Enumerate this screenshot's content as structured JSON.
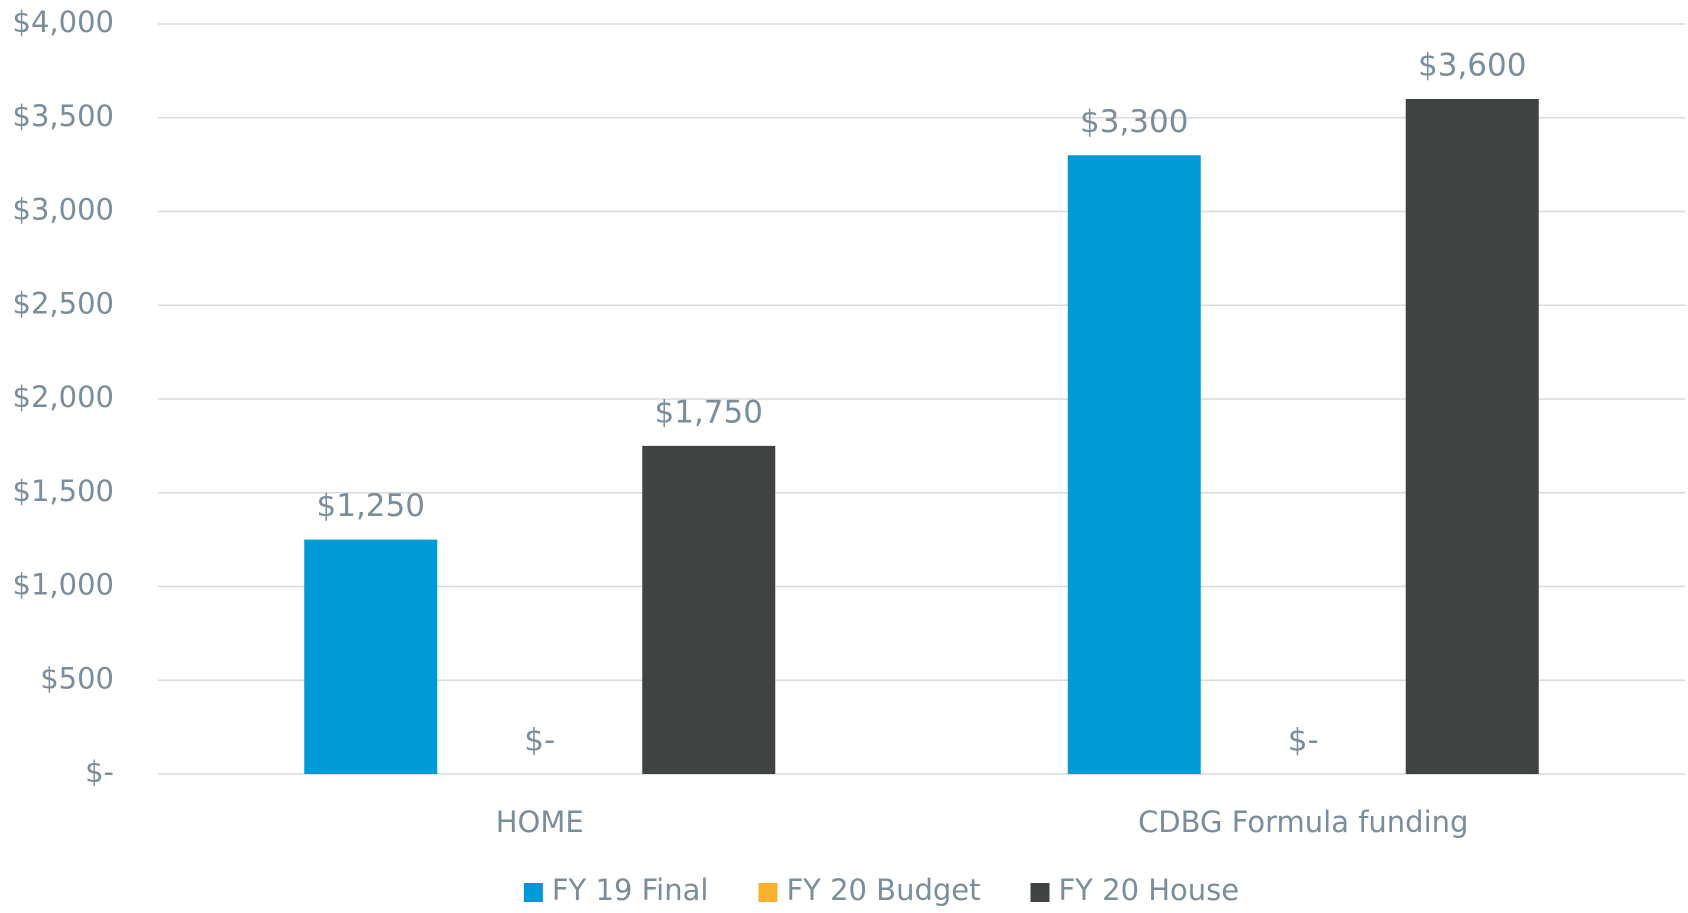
{
  "chart_data": {
    "type": "bar",
    "categories": [
      "HOME",
      "CDBG Formula funding"
    ],
    "series": [
      {
        "name": "FY 19 Final",
        "color": "#009ad9",
        "values": [
          1250,
          3300
        ],
        "value_labels": [
          "$1,250",
          "$3,300"
        ]
      },
      {
        "name": "FY 20 Budget",
        "color": "#fbb12f",
        "values": [
          0,
          0
        ],
        "value_labels": [
          "$-",
          "$-"
        ]
      },
      {
        "name": "FY 20 House",
        "color": "#3f4344",
        "values": [
          1750,
          3600
        ],
        "value_labels": [
          "$1,750",
          "$3,600"
        ]
      }
    ],
    "ylim": [
      0,
      4000
    ],
    "yticks": [
      {
        "value": 0,
        "label": "$-"
      },
      {
        "value": 500,
        "label": "$500"
      },
      {
        "value": 1000,
        "label": "$1,000"
      },
      {
        "value": 1500,
        "label": "$1,500"
      },
      {
        "value": 2000,
        "label": "$2,000"
      },
      {
        "value": 2500,
        "label": "$2,500"
      },
      {
        "value": 3000,
        "label": "$3,000"
      },
      {
        "value": 3500,
        "label": "$3,500"
      },
      {
        "value": 4000,
        "label": "$4,000"
      }
    ],
    "grid": true,
    "legend": "bottom"
  }
}
